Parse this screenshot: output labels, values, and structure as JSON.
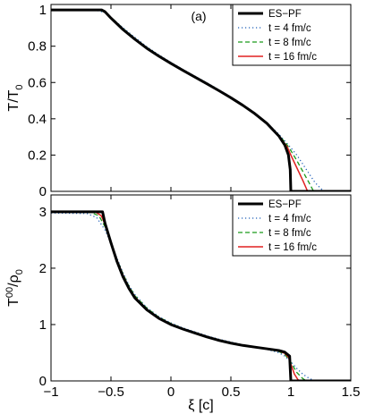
{
  "chart_data": [
    {
      "type": "line",
      "panel_tag": "(a)",
      "ylabel_main": "T/T",
      "ylabel_sub": "0",
      "xlabel": "",
      "xlim": [
        -1,
        1.5
      ],
      "ylim": [
        0,
        1.03
      ],
      "x_ticks": [
        -1,
        -0.5,
        0,
        0.5,
        1,
        1.5
      ],
      "y_ticks": [
        0,
        0.2,
        0.4,
        0.6,
        0.8,
        1
      ],
      "y_tick_labels": [
        "0",
        "0.2",
        "0.4",
        "0.6",
        "0.8",
        "1"
      ],
      "legend_position": "top-right",
      "series": [
        {
          "name": "ES−PF",
          "color": "#000000",
          "style": "solid-thick",
          "points": [
            [
              -1,
              1
            ],
            [
              -0.578,
              1
            ],
            [
              -0.55,
              0.99
            ],
            [
              -0.5,
              0.955
            ],
            [
              -0.4,
              0.892
            ],
            [
              -0.3,
              0.838
            ],
            [
              -0.2,
              0.788
            ],
            [
              -0.1,
              0.745
            ],
            [
              0,
              0.705
            ],
            [
              0.1,
              0.667
            ],
            [
              0.2,
              0.63
            ],
            [
              0.3,
              0.593
            ],
            [
              0.4,
              0.555
            ],
            [
              0.5,
              0.516
            ],
            [
              0.6,
              0.474
            ],
            [
              0.7,
              0.428
            ],
            [
              0.8,
              0.375
            ],
            [
              0.9,
              0.305
            ],
            [
              0.95,
              0.255
            ],
            [
              0.98,
              0.2
            ],
            [
              0.995,
              0.12
            ],
            [
              1.0,
              0.0
            ],
            [
              1.5,
              0.0
            ]
          ]
        },
        {
          "name": "t = 4 fm/c",
          "color": "#1f5fb8",
          "style": "dotted",
          "points": [
            [
              -1,
              1
            ],
            [
              -0.62,
              0.998
            ],
            [
              -0.55,
              0.985
            ],
            [
              -0.5,
              0.958
            ],
            [
              -0.4,
              0.902
            ],
            [
              -0.3,
              0.848
            ],
            [
              -0.2,
              0.797
            ],
            [
              -0.1,
              0.752
            ],
            [
              0,
              0.711
            ],
            [
              0.1,
              0.672
            ],
            [
              0.2,
              0.635
            ],
            [
              0.3,
              0.598
            ],
            [
              0.4,
              0.56
            ],
            [
              0.5,
              0.52
            ],
            [
              0.6,
              0.478
            ],
            [
              0.7,
              0.431
            ],
            [
              0.8,
              0.378
            ],
            [
              0.9,
              0.315
            ],
            [
              1.0,
              0.24
            ],
            [
              1.05,
              0.2
            ],
            [
              1.1,
              0.15
            ],
            [
              1.15,
              0.1
            ],
            [
              1.2,
              0.05
            ],
            [
              1.25,
              0.015
            ],
            [
              1.28,
              0.0
            ],
            [
              1.5,
              0.0
            ]
          ]
        },
        {
          "name": "t = 8 fm/c",
          "color": "#1a9a1a",
          "style": "dashed",
          "points": [
            [
              -1,
              1
            ],
            [
              -0.6,
              0.998
            ],
            [
              -0.55,
              0.99
            ],
            [
              -0.5,
              0.96
            ],
            [
              -0.4,
              0.898
            ],
            [
              -0.3,
              0.843
            ],
            [
              -0.2,
              0.793
            ],
            [
              -0.1,
              0.749
            ],
            [
              0,
              0.708
            ],
            [
              0.1,
              0.669
            ],
            [
              0.2,
              0.632
            ],
            [
              0.3,
              0.595
            ],
            [
              0.4,
              0.557
            ],
            [
              0.5,
              0.518
            ],
            [
              0.6,
              0.476
            ],
            [
              0.7,
              0.429
            ],
            [
              0.8,
              0.376
            ],
            [
              0.9,
              0.31
            ],
            [
              0.96,
              0.265
            ],
            [
              1.0,
              0.225
            ],
            [
              1.05,
              0.17
            ],
            [
              1.1,
              0.11
            ],
            [
              1.15,
              0.05
            ],
            [
              1.19,
              0.0
            ],
            [
              1.5,
              0.0
            ]
          ]
        },
        {
          "name": "t = 16 fm/c",
          "color": "#e02020",
          "style": "solid",
          "points": [
            [
              -1,
              1
            ],
            [
              -0.59,
              1
            ],
            [
              -0.55,
              0.99
            ],
            [
              -0.5,
              0.956
            ],
            [
              -0.4,
              0.894
            ],
            [
              -0.3,
              0.84
            ],
            [
              -0.2,
              0.79
            ],
            [
              -0.1,
              0.746
            ],
            [
              0,
              0.706
            ],
            [
              0.1,
              0.668
            ],
            [
              0.2,
              0.631
            ],
            [
              0.3,
              0.594
            ],
            [
              0.4,
              0.556
            ],
            [
              0.5,
              0.517
            ],
            [
              0.6,
              0.475
            ],
            [
              0.7,
              0.428
            ],
            [
              0.8,
              0.375
            ],
            [
              0.9,
              0.308
            ],
            [
              0.97,
              0.245
            ],
            [
              1.0,
              0.2
            ],
            [
              1.05,
              0.13
            ],
            [
              1.1,
              0.06
            ],
            [
              1.14,
              0.0
            ],
            [
              1.5,
              0.0
            ]
          ]
        }
      ]
    },
    {
      "type": "line",
      "panel_tag": "",
      "ylabel_main": "T",
      "ylabel_sup": "00",
      "ylabel_mid": "/ρ",
      "ylabel_sub": "0",
      "xlabel": "ξ [c]",
      "xlim": [
        -1,
        1.5
      ],
      "ylim": [
        0,
        3.3
      ],
      "x_ticks": [
        -1,
        -0.5,
        0,
        0.5,
        1,
        1.5
      ],
      "x_tick_labels": [
        "−1",
        "−0.5",
        "0",
        "0.5",
        "1",
        "1.5"
      ],
      "y_ticks": [
        0,
        1,
        2,
        3
      ],
      "y_tick_labels": [
        "0",
        "1",
        "2",
        "3"
      ],
      "legend_position": "top-right",
      "series": [
        {
          "name": "ES−PF",
          "color": "#000000",
          "style": "solid-thick",
          "points": [
            [
              -1,
              3.0
            ],
            [
              -0.57,
              3.0
            ],
            [
              -0.55,
              2.8
            ],
            [
              -0.5,
              2.45
            ],
            [
              -0.45,
              2.12
            ],
            [
              -0.4,
              1.85
            ],
            [
              -0.35,
              1.64
            ],
            [
              -0.3,
              1.47
            ],
            [
              -0.2,
              1.26
            ],
            [
              -0.1,
              1.11
            ],
            [
              0,
              1.0
            ],
            [
              0.1,
              0.92
            ],
            [
              0.2,
              0.85
            ],
            [
              0.3,
              0.78
            ],
            [
              0.4,
              0.72
            ],
            [
              0.5,
              0.67
            ],
            [
              0.6,
              0.63
            ],
            [
              0.7,
              0.6
            ],
            [
              0.8,
              0.57
            ],
            [
              0.9,
              0.54
            ],
            [
              0.95,
              0.51
            ],
            [
              0.99,
              0.44
            ],
            [
              1.0,
              0.0
            ],
            [
              1.5,
              0.0
            ]
          ]
        },
        {
          "name": "t = 4 fm/c",
          "color": "#1f5fb8",
          "style": "dotted",
          "points": [
            [
              -1,
              2.98
            ],
            [
              -0.7,
              2.97
            ],
            [
              -0.62,
              2.9
            ],
            [
              -0.55,
              2.68
            ],
            [
              -0.5,
              2.45
            ],
            [
              -0.45,
              2.18
            ],
            [
              -0.4,
              1.92
            ],
            [
              -0.35,
              1.7
            ],
            [
              -0.3,
              1.53
            ],
            [
              -0.2,
              1.3
            ],
            [
              -0.1,
              1.14
            ],
            [
              0,
              1.03
            ],
            [
              0.1,
              0.94
            ],
            [
              0.2,
              0.87
            ],
            [
              0.3,
              0.8
            ],
            [
              0.4,
              0.74
            ],
            [
              0.5,
              0.69
            ],
            [
              0.6,
              0.64
            ],
            [
              0.7,
              0.6
            ],
            [
              0.8,
              0.56
            ],
            [
              0.9,
              0.5
            ],
            [
              0.95,
              0.44
            ],
            [
              1.0,
              0.34
            ],
            [
              1.05,
              0.22
            ],
            [
              1.1,
              0.12
            ],
            [
              1.15,
              0.05
            ],
            [
              1.2,
              0.0
            ],
            [
              1.5,
              0.0
            ]
          ]
        },
        {
          "name": "t = 8 fm/c",
          "color": "#1a9a1a",
          "style": "dashed",
          "points": [
            [
              -1,
              3.0
            ],
            [
              -0.67,
              2.99
            ],
            [
              -0.6,
              2.93
            ],
            [
              -0.55,
              2.74
            ],
            [
              -0.5,
              2.47
            ],
            [
              -0.45,
              2.16
            ],
            [
              -0.4,
              1.9
            ],
            [
              -0.35,
              1.68
            ],
            [
              -0.3,
              1.51
            ],
            [
              -0.2,
              1.29
            ],
            [
              -0.1,
              1.13
            ],
            [
              0,
              1.02
            ],
            [
              0.1,
              0.93
            ],
            [
              0.2,
              0.86
            ],
            [
              0.3,
              0.79
            ],
            [
              0.4,
              0.73
            ],
            [
              0.5,
              0.68
            ],
            [
              0.6,
              0.635
            ],
            [
              0.7,
              0.6
            ],
            [
              0.8,
              0.565
            ],
            [
              0.9,
              0.52
            ],
            [
              0.95,
              0.47
            ],
            [
              1.0,
              0.33
            ],
            [
              1.05,
              0.15
            ],
            [
              1.1,
              0.04
            ],
            [
              1.13,
              0.0
            ],
            [
              1.5,
              0.0
            ]
          ]
        },
        {
          "name": "t = 16 fm/c",
          "color": "#e02020",
          "style": "solid",
          "points": [
            [
              -1,
              3.0
            ],
            [
              -0.63,
              3.0
            ],
            [
              -0.58,
              2.93
            ],
            [
              -0.55,
              2.78
            ],
            [
              -0.5,
              2.47
            ],
            [
              -0.45,
              2.15
            ],
            [
              -0.4,
              1.88
            ],
            [
              -0.35,
              1.66
            ],
            [
              -0.3,
              1.49
            ],
            [
              -0.2,
              1.27
            ],
            [
              -0.1,
              1.12
            ],
            [
              0,
              1.01
            ],
            [
              0.1,
              0.925
            ],
            [
              0.2,
              0.855
            ],
            [
              0.3,
              0.785
            ],
            [
              0.4,
              0.725
            ],
            [
              0.5,
              0.675
            ],
            [
              0.6,
              0.635
            ],
            [
              0.7,
              0.6
            ],
            [
              0.8,
              0.57
            ],
            [
              0.9,
              0.53
            ],
            [
              0.95,
              0.49
            ],
            [
              0.98,
              0.42
            ],
            [
              1.0,
              0.3
            ],
            [
              1.03,
              0.12
            ],
            [
              1.06,
              0.02
            ],
            [
              1.08,
              0.0
            ],
            [
              1.5,
              0.0
            ]
          ]
        }
      ]
    }
  ]
}
